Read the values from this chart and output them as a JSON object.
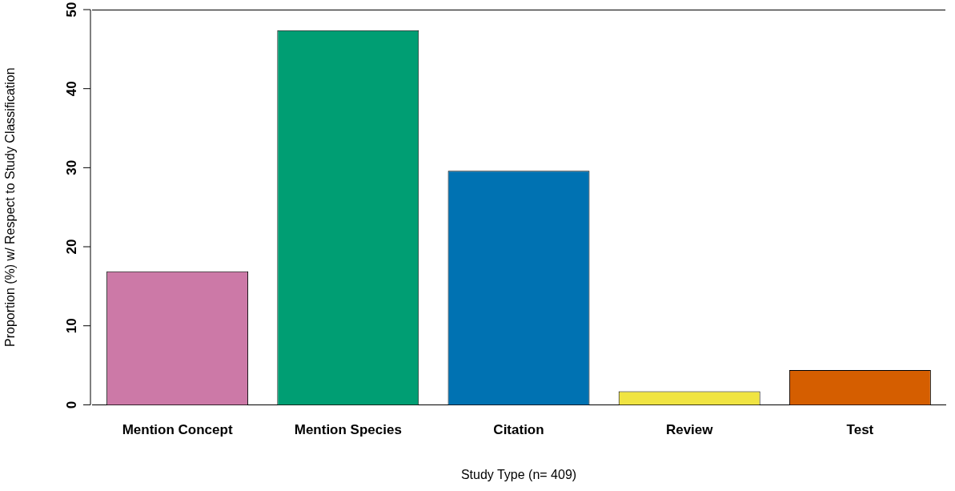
{
  "chart_data": {
    "type": "bar",
    "xlabel": "Study Type (n= 409)",
    "ylabel": "Proportion (%) w/ Respect to Study Classification",
    "categories": [
      "Mention Concept",
      "Mention Species",
      "Citation",
      "Review",
      "Test"
    ],
    "values": [
      16.9,
      47.4,
      29.6,
      1.7,
      4.4
    ],
    "colors": [
      "#cc79a7",
      "#009e73",
      "#0072b2",
      "#f0e442",
      "#d55e00"
    ],
    "ylim": [
      0,
      50
    ],
    "yticks": [
      0,
      10,
      20,
      30,
      40,
      50
    ],
    "grid": false,
    "legend": false,
    "ref_lines": [
      {
        "axis": "y",
        "value": 50
      }
    ]
  }
}
